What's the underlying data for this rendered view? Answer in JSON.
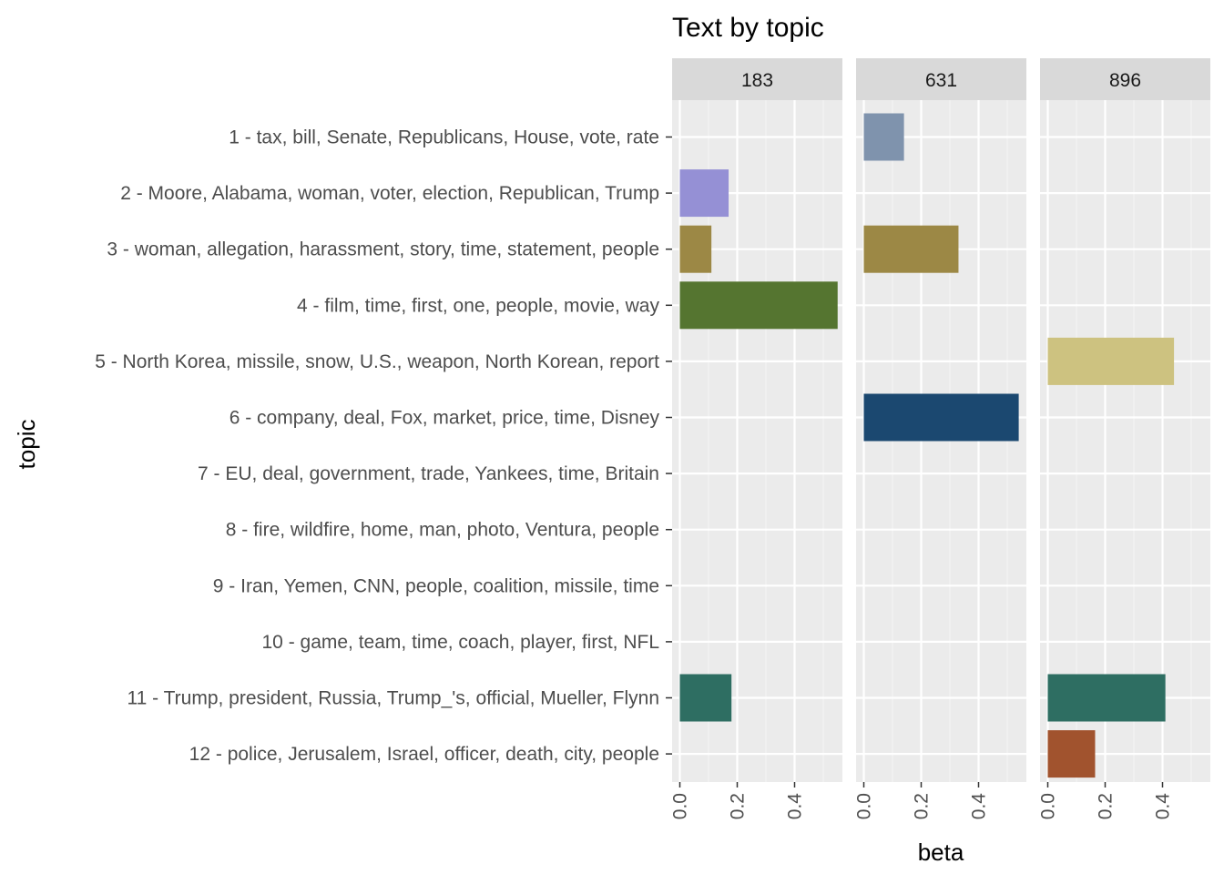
{
  "chart_data": {
    "type": "bar",
    "title": "Text by topic",
    "xlabel": "beta",
    "ylabel": "topic",
    "xlim": [
      0,
      0.55
    ],
    "x_ticks": [
      "0.0",
      "0.2",
      "0.4"
    ],
    "grid": true,
    "facets": [
      "183",
      "631",
      "896"
    ],
    "categories": [
      "1 - tax, bill, Senate, Republicans, House, vote, rate",
      "2 - Moore, Alabama, woman, voter, election, Republican, Trump",
      "3 - woman, allegation, harassment, story, time, statement, people",
      "4 - film, time, first, one, people, movie, way",
      "5 - North Korea, missile, snow, U.S., weapon, North Korean, report",
      "6 - company, deal, Fox, market, price, time, Disney",
      "7 - EU, deal, government, trade, Yankees, time, Britain",
      "8 - fire, wildfire, home, man, photo, Ventura, people",
      "9 - Iran, Yemen, CNN, people, coalition, missile, time",
      "10 - game, team, time, coach, player, first, NFL",
      "11 - Trump, president, Russia, Trump_'s, official, Mueller, Flynn",
      "12 - police, Jerusalem, Israel, officer, death, city, people"
    ],
    "colors": [
      "#7f93ad",
      "#9590d5",
      "#9c8845",
      "#557530",
      "#cdc280",
      "#1b4870",
      "#9b8ed0",
      "#c77b3a",
      "#8a6aa8",
      "#4f7a9a",
      "#2e6e62",
      "#a1532e"
    ],
    "bars": [
      {
        "facet": "183",
        "topic_index": 1,
        "value": 0.17
      },
      {
        "facet": "183",
        "topic_index": 2,
        "value": 0.11
      },
      {
        "facet": "183",
        "topic_index": 3,
        "value": 0.55
      },
      {
        "facet": "183",
        "topic_index": 10,
        "value": 0.18
      },
      {
        "facet": "631",
        "topic_index": 0,
        "value": 0.14
      },
      {
        "facet": "631",
        "topic_index": 2,
        "value": 0.33
      },
      {
        "facet": "631",
        "topic_index": 5,
        "value": 0.54
      },
      {
        "facet": "896",
        "topic_index": 4,
        "value": 0.44
      },
      {
        "facet": "896",
        "topic_index": 10,
        "value": 0.41
      },
      {
        "facet": "896",
        "topic_index": 11,
        "value": 0.165
      }
    ]
  }
}
